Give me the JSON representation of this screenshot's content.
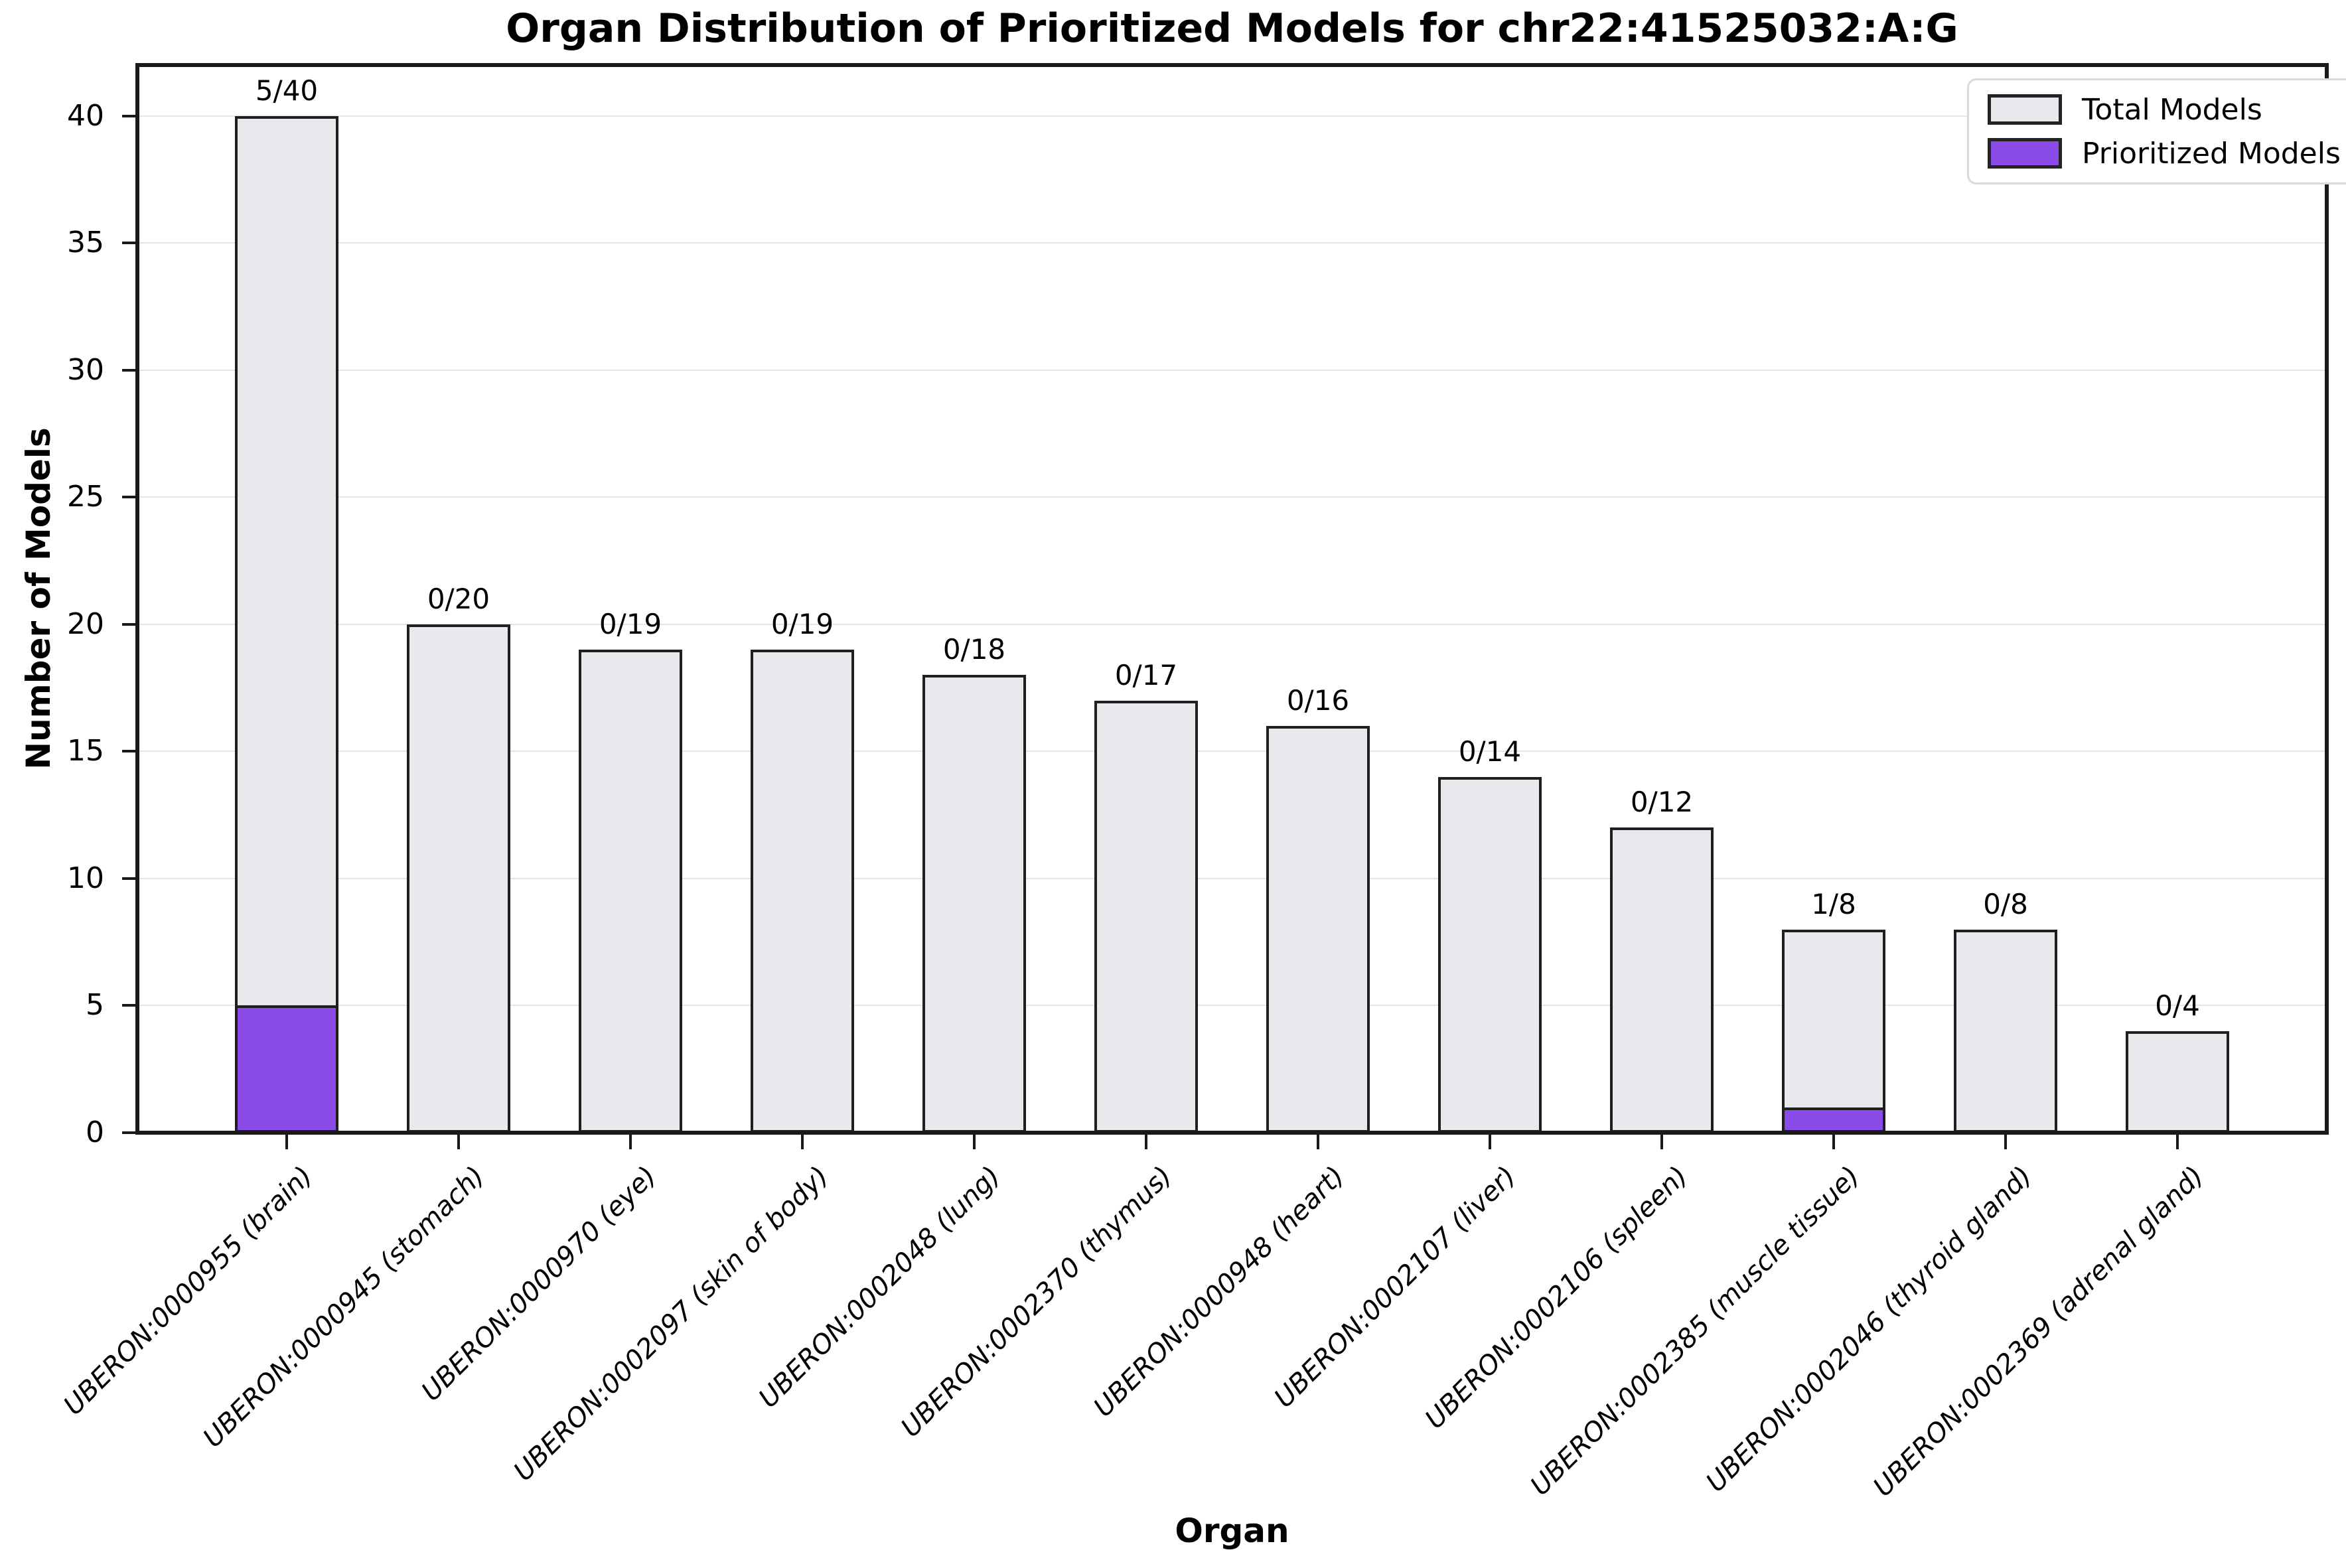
{
  "title": "Organ Distribution of Prioritized Models for chr22:41525032:A:G",
  "chart_data": {
    "type": "bar",
    "stacked": true,
    "title": "Organ Distribution of Prioritized Models for chr22:41525032:A:G",
    "xlabel": "Organ",
    "ylabel": "Number of Models",
    "ylim": [
      0,
      42
    ],
    "yticks": [
      0,
      5,
      10,
      15,
      20,
      25,
      30,
      35,
      40
    ],
    "grid": "horizontal",
    "categories": [
      "UBERON:0000955 (brain)",
      "UBERON:0000945 (stomach)",
      "UBERON:0000970 (eye)",
      "UBERON:0002097 (skin of body)",
      "UBERON:0002048 (lung)",
      "UBERON:0002370 (thymus)",
      "UBERON:0000948 (heart)",
      "UBERON:0002107 (liver)",
      "UBERON:0002106 (spleen)",
      "UBERON:0002385 (muscle tissue)",
      "UBERON:0002046 (thyroid gland)",
      "UBERON:0002369 (adrenal gland)"
    ],
    "series": [
      {
        "name": "Prioritized Models",
        "color": "#8a4be8",
        "values": [
          5,
          0,
          0,
          0,
          0,
          0,
          0,
          0,
          0,
          1,
          0,
          0
        ]
      },
      {
        "name": "Total Models",
        "color": "#e9e9ed",
        "values": [
          40,
          20,
          19,
          19,
          18,
          17,
          16,
          14,
          12,
          8,
          8,
          4
        ]
      }
    ],
    "bar_labels": [
      "5/40",
      "0/20",
      "0/19",
      "0/19",
      "0/18",
      "0/17",
      "0/16",
      "0/14",
      "0/12",
      "1/8",
      "0/8",
      "0/4"
    ],
    "legend": {
      "position": "upper right",
      "entries": [
        {
          "label": "Total Models",
          "color": "#e9e9ed"
        },
        {
          "label": "Prioritized Models",
          "color": "#8a4be8"
        }
      ]
    },
    "colors": {
      "bar_edge": "#1f1f1f",
      "grid": "#e5e5e5",
      "axis": "#1a1a1a",
      "background": "#ffffff"
    }
  }
}
